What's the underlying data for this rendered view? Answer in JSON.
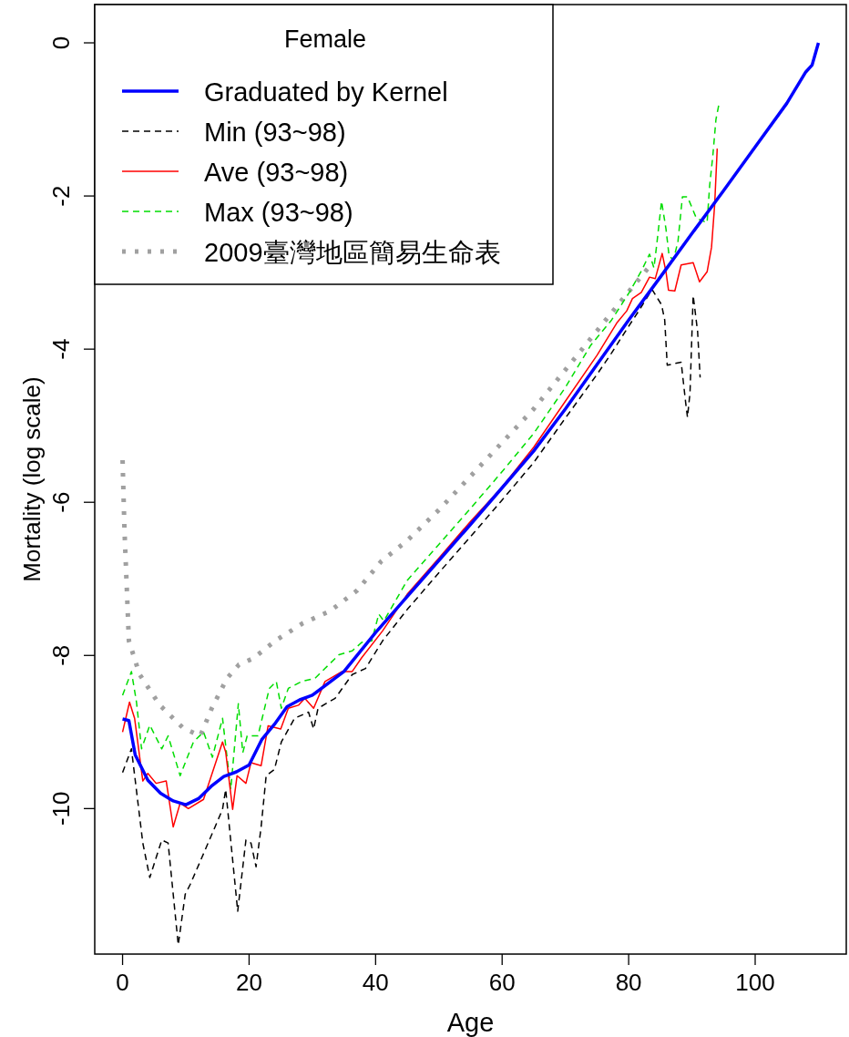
{
  "chart_data": {
    "type": "line",
    "xlabel": "Age",
    "ylabel": "Mortality (log scale)",
    "legend_title": "Female",
    "legend": "top left",
    "xlim": [
      -4.4,
      114.4
    ],
    "ylim": [
      -11.9,
      0.5
    ],
    "xticks": [
      0,
      20,
      40,
      60,
      80,
      100
    ],
    "yticks": [
      -10,
      -8,
      -6,
      -4,
      -2,
      0
    ],
    "series": [
      {
        "name": "Graduated by Kernel",
        "color": "#0000ff",
        "line_style": "solid",
        "x": [
          0,
          1,
          2,
          4,
          6,
          8,
          10,
          12,
          14,
          16,
          18,
          20,
          22,
          24,
          26,
          28,
          30,
          35,
          40,
          45,
          50,
          55,
          60,
          65,
          70,
          75,
          80,
          85,
          90,
          95,
          100,
          105,
          108,
          109,
          110
        ],
        "values": [
          -8.83,
          -8.85,
          -9.3,
          -9.63,
          -9.8,
          -9.9,
          -9.95,
          -9.87,
          -9.71,
          -9.58,
          -9.52,
          -9.43,
          -9.1,
          -8.9,
          -8.67,
          -8.58,
          -8.52,
          -8.21,
          -7.7,
          -7.23,
          -6.76,
          -6.29,
          -5.81,
          -5.33,
          -4.78,
          -4.2,
          -3.62,
          -3.06,
          -2.49,
          -1.93,
          -1.36,
          -0.79,
          -0.38,
          -0.29,
          0
        ]
      },
      {
        "name": "Min (93~98)",
        "color": "#000000",
        "line_style": "dashed",
        "x": [
          0,
          1.4,
          3.2,
          4.3,
          6.2,
          7.2,
          8.8,
          9.9,
          10.7,
          14.2,
          15.8,
          16.3,
          18.2,
          19.5,
          20.3,
          21.1,
          21.9,
          22.7,
          24,
          25.1,
          27.2,
          29.4,
          30.2,
          30.9,
          33.6,
          36.3,
          38.4,
          41.1,
          45,
          50,
          55,
          60,
          65,
          70,
          75,
          77.3,
          79.7,
          81.6,
          83.7,
          85.2,
          85.7,
          86.1,
          88.3,
          89,
          89.3,
          89.7,
          90.2,
          90.9,
          91.3
        ],
        "values": [
          -9.53,
          -9.22,
          -10.45,
          -10.9,
          -10.41,
          -10.45,
          -11.78,
          -11.12,
          -10.99,
          -10.32,
          -10.01,
          -9.75,
          -11.34,
          -10.41,
          -10.45,
          -10.76,
          -10.24,
          -9.57,
          -9.49,
          -9.13,
          -8.82,
          -8.74,
          -8.96,
          -8.69,
          -8.56,
          -8.25,
          -8.17,
          -7.81,
          -7.4,
          -6.92,
          -6.45,
          -5.97,
          -5.48,
          -4.9,
          -4.33,
          -4.05,
          -3.74,
          -3.5,
          -3.22,
          -3.42,
          -3.62,
          -4.21,
          -4.17,
          -4.69,
          -4.89,
          -4.57,
          -3.3,
          -3.77,
          -4.37
        ]
      },
      {
        "name": "Ave (93~98)",
        "color": "#ff0000",
        "line_style": "solid",
        "x": [
          0,
          1.1,
          1.9,
          3.2,
          4,
          5.3,
          6.9,
          8,
          9.1,
          10.4,
          12.8,
          15.8,
          16.3,
          17.4,
          18.1,
          19.5,
          20.3,
          21.9,
          23,
          25,
          26.2,
          27.8,
          28.8,
          30.2,
          32,
          34.7,
          36.3,
          37.8,
          41.1,
          45,
          50,
          55,
          60,
          65,
          70,
          75,
          78.2,
          79.7,
          80.6,
          82,
          83.3,
          84.2,
          85.3,
          85.9,
          86.3,
          87.3,
          88.3,
          90.2,
          91.2,
          92.4,
          93.1,
          93.6,
          94
        ],
        "values": [
          -9.0,
          -8.61,
          -8.82,
          -9.64,
          -9.54,
          -9.67,
          -9.64,
          -10.24,
          -9.93,
          -10.0,
          -9.88,
          -9.13,
          -9.26,
          -10.01,
          -9.57,
          -9.67,
          -9.4,
          -9.44,
          -8.92,
          -8.96,
          -8.69,
          -8.65,
          -8.56,
          -8.69,
          -8.34,
          -8.21,
          -8.21,
          -8.03,
          -7.68,
          -7.2,
          -6.73,
          -6.25,
          -5.8,
          -5.28,
          -4.68,
          -4.08,
          -3.65,
          -3.5,
          -3.34,
          -3.26,
          -3.06,
          -3.08,
          -2.75,
          -2.99,
          -3.23,
          -3.24,
          -2.9,
          -2.87,
          -3.12,
          -2.99,
          -2.67,
          -2.11,
          -1.38
        ]
      },
      {
        "name": "Max (93~98)",
        "color": "#00dd00",
        "line_style": "dashed",
        "x": [
          0,
          1.4,
          2.2,
          3,
          4.3,
          6.2,
          7.2,
          9.1,
          11.2,
          12.8,
          14.2,
          15.8,
          17.1,
          18.3,
          19,
          19.7,
          21.4,
          23.2,
          24.3,
          25.1,
          26.2,
          28.3,
          30.4,
          32,
          34.2,
          36.3,
          37.8,
          39.4,
          40.5,
          41.3,
          45,
          50,
          55,
          60,
          65,
          70,
          74,
          77.3,
          80.1,
          82,
          83.3,
          84,
          84.5,
          85.2,
          85.9,
          86.4,
          87.1,
          87.8,
          88.5,
          89.3,
          90.7,
          92.4,
          92.8,
          93.3,
          93.8,
          94.3
        ],
        "values": [
          -8.52,
          -8.21,
          -8.61,
          -9.22,
          -8.91,
          -9.22,
          -9.05,
          -9.57,
          -9.13,
          -9.0,
          -9.33,
          -8.82,
          -9.75,
          -8.63,
          -9.27,
          -9.05,
          -9.05,
          -8.43,
          -8.34,
          -8.69,
          -8.43,
          -8.34,
          -8.3,
          -8.17,
          -7.99,
          -7.94,
          -7.83,
          -7.81,
          -7.46,
          -7.55,
          -7.02,
          -6.55,
          -6.08,
          -5.6,
          -5.1,
          -4.5,
          -3.95,
          -3.62,
          -3.26,
          -2.98,
          -2.76,
          -2.94,
          -2.59,
          -2.07,
          -2.43,
          -2.79,
          -2.83,
          -2.59,
          -2.01,
          -2.01,
          -2.29,
          -2.35,
          -1.87,
          -1.48,
          -1.0,
          -0.79
        ]
      },
      {
        "name": "2009臺灣地區簡易生命表",
        "color": "#a0a0a0",
        "line_style": "dotted",
        "x": [
          0,
          0.3,
          1,
          2.7,
          5.9,
          9.6,
          12.3,
          14.1,
          16.5,
          18.4,
          20.6,
          24.3,
          28.5,
          32.8,
          37.1,
          40.9,
          45,
          50,
          55,
          60,
          65,
          70,
          75,
          80,
          83
        ],
        "values": [
          -5.45,
          -6.36,
          -7.81,
          -8.25,
          -8.65,
          -8.95,
          -9.05,
          -8.69,
          -8.3,
          -8.12,
          -8.04,
          -7.8,
          -7.58,
          -7.42,
          -7.15,
          -6.77,
          -6.5,
          -6.1,
          -5.66,
          -5.22,
          -4.78,
          -4.27,
          -3.76,
          -3.25,
          -2.95
        ]
      }
    ]
  }
}
